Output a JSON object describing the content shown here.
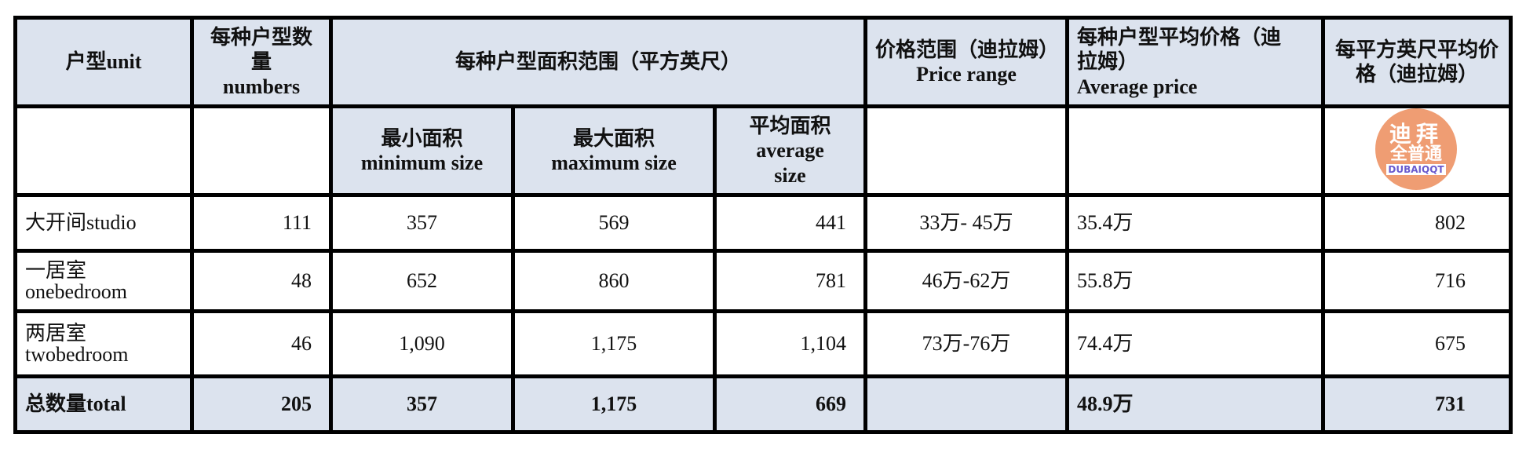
{
  "header": {
    "unit": "户型unit",
    "numbers_cn": "每种户型数量",
    "numbers_en": "numbers",
    "area_range": "每种户型面积范围（平方英尺）",
    "price_range_cn": "价格范围（迪拉姆）",
    "price_range_en": "Price range",
    "avg_price_cn": "每种户型平均价格（迪拉姆）",
    "avg_price_en": "Average price",
    "price_per_sqft": "每平方英尺平均价格（迪拉姆）",
    "min_cn": "最小面积",
    "min_en": "minimum size",
    "max_cn": "最大面积",
    "max_en": "maximum size",
    "avg_cn": "平均面积",
    "avg_en": "average size"
  },
  "rows": [
    {
      "unit": "大开间studio",
      "numbers": "111",
      "min": "357",
      "max": "569",
      "avg": "441",
      "price_range": "33万- 45万",
      "avg_price": "35.4万",
      "per_sqft": "802"
    },
    {
      "unit": "一居室 onebedroom",
      "numbers": "48",
      "min": "652",
      "max": "860",
      "avg": "781",
      "price_range": "46万-62万",
      "avg_price": "55.8万",
      "per_sqft": "716"
    },
    {
      "unit": "两居室 twobedroom",
      "numbers": "46",
      "min": "1,090",
      "max": "1,175",
      "avg": "1,104",
      "price_range": "73万-76万",
      "avg_price": "74.4万",
      "per_sqft": "675"
    }
  ],
  "total": {
    "unit": "总数量total",
    "numbers": "205",
    "min": "357",
    "max": "1,175",
    "avg": "669",
    "price_range": "",
    "avg_price": "48.9万",
    "per_sqft": "731"
  },
  "watermark": {
    "line1": "迪拜",
    "line2": "全普通",
    "line3": "DUBAIQQT"
  }
}
